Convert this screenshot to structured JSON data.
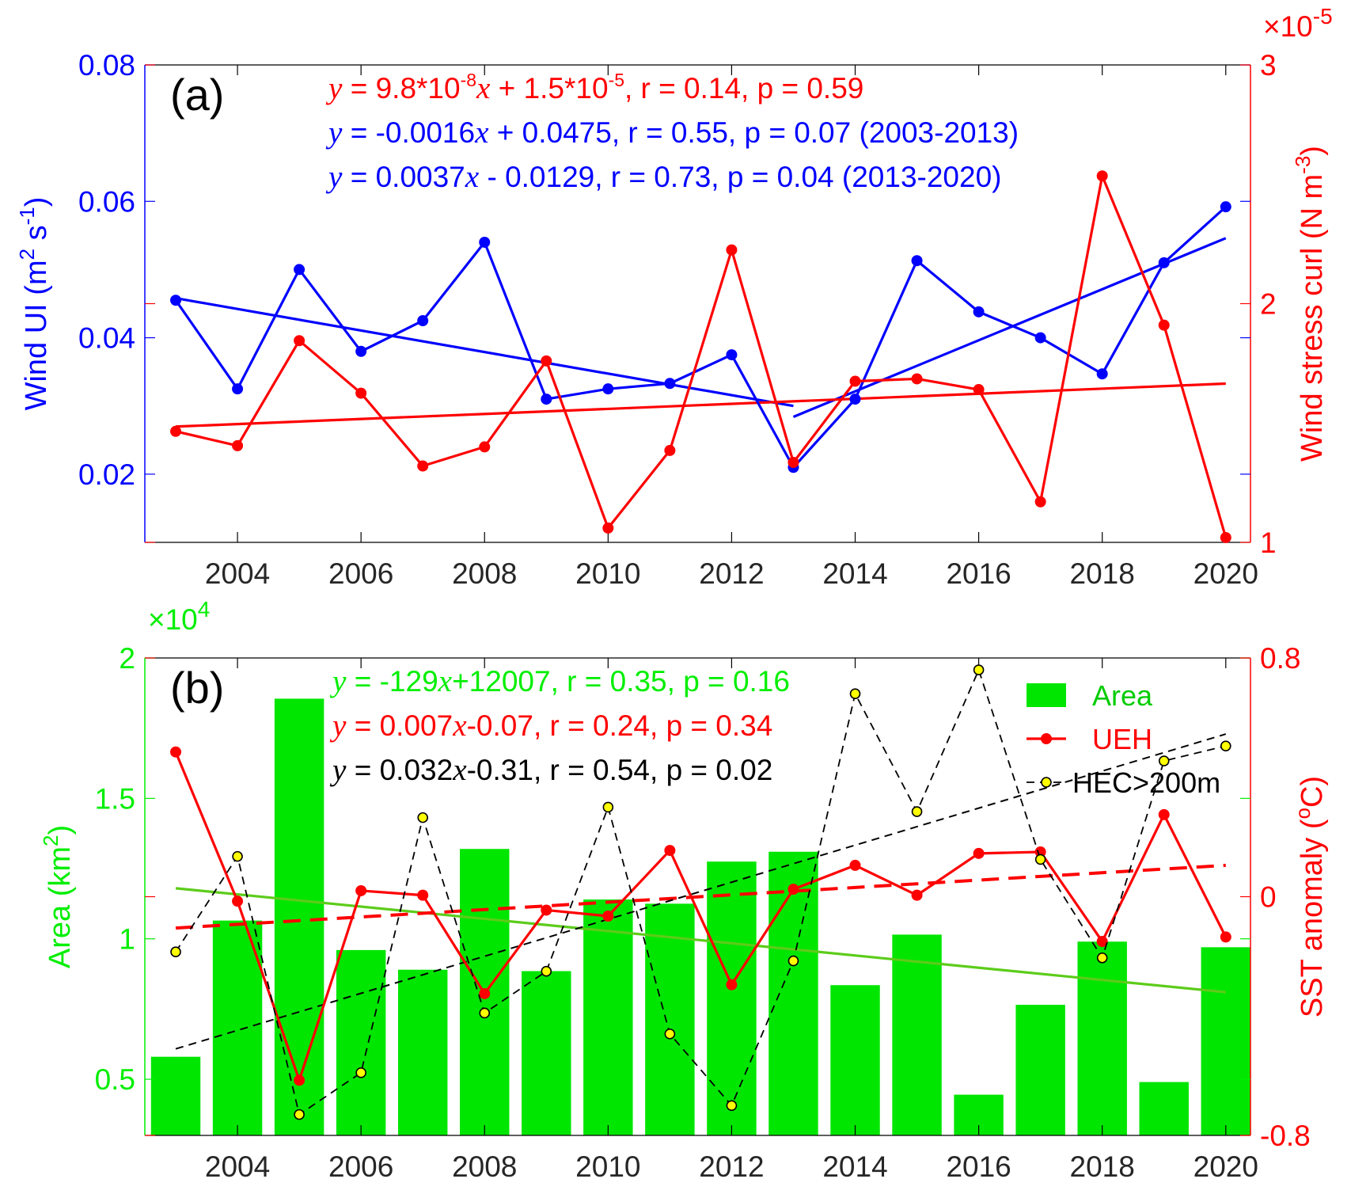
{
  "chart_data": [
    {
      "type": "line",
      "panel_label": "(a)",
      "x": [
        2003,
        2004,
        2005,
        2006,
        2007,
        2008,
        2009,
        2010,
        2011,
        2012,
        2013,
        2014,
        2015,
        2016,
        2017,
        2018,
        2019,
        2020
      ],
      "xlim": [
        2002.5,
        2020.4
      ],
      "xticks": [
        "2004",
        "2006",
        "2008",
        "2010",
        "2012",
        "2014",
        "2016",
        "2018",
        "2020"
      ],
      "left_axis": {
        "label_main": "Wind UI (m",
        "label_sup1": "2",
        "label_mid": " s",
        "label_sup2": "-1",
        "label_end": ")",
        "ylim": [
          0.01,
          0.08
        ],
        "ticks": [
          "0.02",
          "0.04",
          "0.06",
          "0.08"
        ],
        "color": "#0000ff"
      },
      "right_axis": {
        "label_main": "Wind stress curl (N m",
        "label_sup": "-3",
        "label_end": ")",
        "ylim": [
          1,
          3
        ],
        "ticks": [
          "1",
          "2",
          "3"
        ],
        "multiplier_base": "×10",
        "multiplier_exp": "-5",
        "color": "#ff0000"
      },
      "series": [
        {
          "axis": "left",
          "color": "#0000ff",
          "values": [
            0.0455,
            0.0325,
            0.05,
            0.038,
            0.0425,
            0.054,
            0.031,
            0.0325,
            0.0333,
            0.0375,
            0.021,
            0.031,
            0.0513,
            0.0438,
            0.04,
            0.0347,
            0.051,
            0.0592
          ]
        },
        {
          "axis": "right",
          "color": "#ff0000",
          "values": [
            1.465,
            1.405,
            1.845,
            1.625,
            1.32,
            1.4,
            1.76,
            1.06,
            1.385,
            2.225,
            1.335,
            1.675,
            1.685,
            1.64,
            1.17,
            2.535,
            1.91,
            1.02
          ]
        }
      ],
      "trend_lines": [
        {
          "axis": "left",
          "color": "#0000ff",
          "x": [
            2003,
            2013
          ],
          "y": [
            0.0458,
            0.03
          ]
        },
        {
          "axis": "left",
          "color": "#0000ff",
          "x": [
            2013,
            2020
          ],
          "y": [
            0.0284,
            0.0546
          ]
        },
        {
          "axis": "right",
          "color": "#ff0000",
          "x": [
            2003,
            2020
          ],
          "y": [
            1.485,
            1.665
          ]
        }
      ],
      "annotations": [
        {
          "color": "#ff0000",
          "parts": [
            {
              "t": "y",
              "i": true
            },
            {
              "t": " = 9.8*10"
            },
            {
              "t": "-8",
              "sup": true
            },
            {
              "t": "x",
              "i": true
            },
            {
              "t": " + 1.5*10"
            },
            {
              "t": "-5",
              "sup": true
            },
            {
              "t": ", r = 0.14, p = 0.59"
            }
          ]
        },
        {
          "color": "#0000ff",
          "parts": [
            {
              "t": "y",
              "i": true
            },
            {
              "t": " = -0.0016"
            },
            {
              "t": "x",
              "i": true
            },
            {
              "t": " + 0.0475, r = 0.55, p = 0.07 (2003-2013)"
            }
          ]
        },
        {
          "color": "#0000ff",
          "parts": [
            {
              "t": "y",
              "i": true
            },
            {
              "t": " = 0.0037"
            },
            {
              "t": "x",
              "i": true
            },
            {
              "t": " - 0.0129, r = 0.73, p = 0.04   (2013-2020)"
            }
          ]
        }
      ]
    },
    {
      "type": "bar",
      "panel_label": "(b)",
      "x": [
        2003,
        2004,
        2005,
        2006,
        2007,
        2008,
        2009,
        2010,
        2011,
        2012,
        2013,
        2014,
        2015,
        2016,
        2017,
        2018,
        2019,
        2020
      ],
      "xlim": [
        2002.5,
        2020.4
      ],
      "xticks": [
        "2004",
        "2006",
        "2008",
        "2010",
        "2012",
        "2014",
        "2016",
        "2018",
        "2020"
      ],
      "left_axis": {
        "label_main": "Area (km",
        "label_sup": "2",
        "label_end": ")",
        "ylim": [
          0.3,
          2.0
        ],
        "ticks": [
          "0.5",
          "1",
          "1.5",
          "2"
        ],
        "multiplier_base": "×10",
        "multiplier_exp": "4",
        "color": "#00ee00"
      },
      "right_axis": {
        "label_main": "SST anomaly (",
        "label_sup": "o",
        "label_end": "C)",
        "ylim": [
          -0.8,
          0.8
        ],
        "ticks": [
          "-0.8",
          "0",
          "0.8"
        ],
        "color": "#ff0000"
      },
      "bars": {
        "name": "Area",
        "color": "#00e600",
        "values": [
          0.58,
          1.065,
          1.855,
          0.96,
          0.89,
          1.32,
          0.885,
          1.14,
          1.125,
          1.275,
          1.31,
          0.835,
          1.015,
          0.445,
          0.765,
          0.99,
          0.49,
          0.97
        ]
      },
      "series": [
        {
          "name": "UEH",
          "axis": "right",
          "color": "#ff0000",
          "values": [
            0.485,
            -0.015,
            -0.615,
            0.02,
            0.005,
            -0.325,
            -0.045,
            -0.065,
            0.155,
            -0.295,
            0.025,
            0.105,
            0.005,
            0.145,
            0.15,
            -0.15,
            0.275,
            -0.135
          ]
        },
        {
          "name": "HEC>200m",
          "axis": "right",
          "color": "#000000",
          "marker_fill": "#ffff00",
          "values": [
            -0.185,
            0.135,
            -0.73,
            -0.59,
            0.265,
            -0.39,
            -0.25,
            0.3,
            -0.46,
            -0.7,
            -0.215,
            0.68,
            0.285,
            0.76,
            0.125,
            -0.205,
            0.455,
            0.505
          ]
        }
      ],
      "trend_lines": [
        {
          "name": "Area trend",
          "color": "#5ccc1a",
          "x": [
            2003,
            2020
          ],
          "y_axis": "left",
          "y": [
            1.18,
            0.81
          ]
        },
        {
          "name": "UEH trend",
          "color": "#ff0000",
          "dashed": true,
          "x": [
            2003,
            2020
          ],
          "y_axis": "right",
          "y": [
            -0.105,
            0.105
          ]
        },
        {
          "name": "HEC trend",
          "color": "#000000",
          "dashed": true,
          "x": [
            2003,
            2020
          ],
          "y_axis": "right",
          "y": [
            -0.51,
            0.545
          ]
        }
      ],
      "annotations": [
        {
          "color": "#00ee00",
          "parts": [
            {
              "t": "y",
              "i": true
            },
            {
              "t": " = -129"
            },
            {
              "t": "x",
              "i": true
            },
            {
              "t": "+12007, r = 0.35, p = 0.16"
            }
          ]
        },
        {
          "color": "#ff0000",
          "parts": [
            {
              "t": "y",
              "i": true
            },
            {
              "t": " = 0.007"
            },
            {
              "t": "x",
              "i": true
            },
            {
              "t": "-0.07, r = 0.24, p = 0.34"
            }
          ]
        },
        {
          "color": "#000000",
          "parts": [
            {
              "t": "y",
              "i": true
            },
            {
              "t": " = 0.032"
            },
            {
              "t": "x",
              "i": true
            },
            {
              "t": "-0.31, r = 0.54, p = 0.02"
            }
          ]
        }
      ],
      "legend": {
        "placement": "top-right",
        "entries": [
          {
            "label": "Area",
            "kind": "bar",
            "color": "#00e600"
          },
          {
            "label": "UEH",
            "kind": "line",
            "color": "#ff0000"
          },
          {
            "label": "HEC>200m",
            "kind": "dashed",
            "color": "#000000",
            "marker_fill": "#ffff00"
          }
        ]
      }
    }
  ]
}
